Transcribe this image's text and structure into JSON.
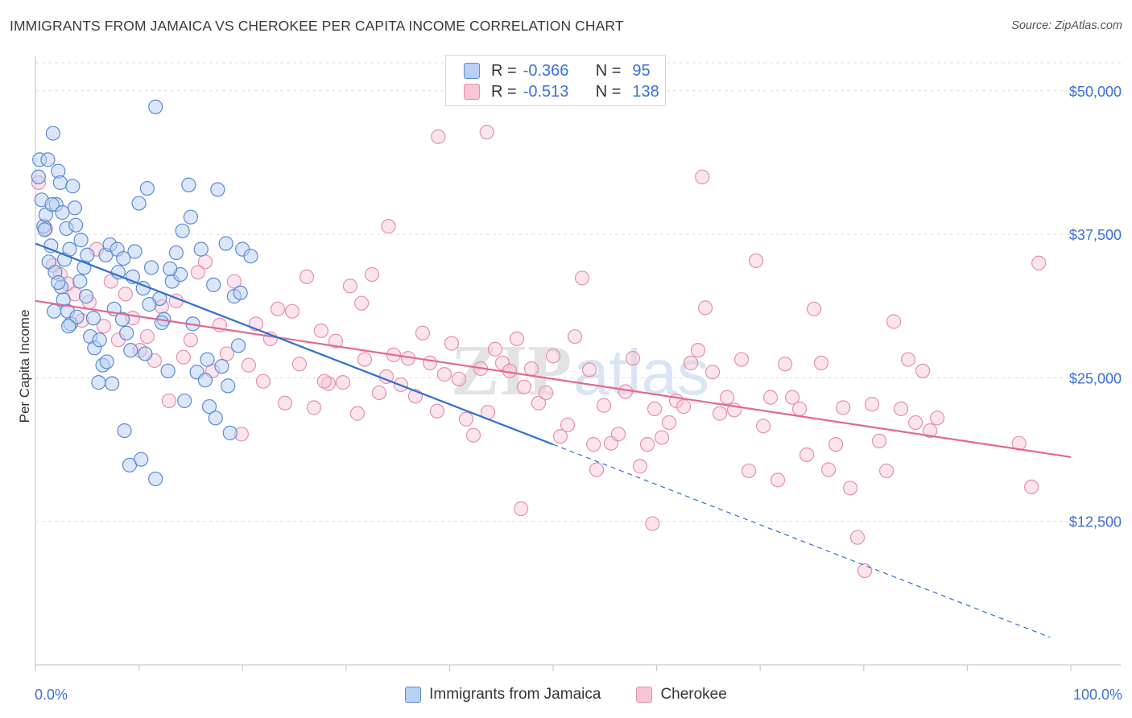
{
  "title": "IMMIGRANTS FROM JAMAICA VS CHEROKEE PER CAPITA INCOME CORRELATION CHART",
  "source": "Source: ZipAtlas.com",
  "watermark": {
    "zip": "ZIP",
    "atlas": "atlas"
  },
  "legend": {
    "r_label": "R =",
    "n_label": "N =",
    "rows": [
      {
        "r": "-0.366",
        "n": "95"
      },
      {
        "r": "-0.513",
        "n": "138"
      }
    ]
  },
  "colors": {
    "jamaica_fill": "#b8d0f4",
    "jamaica_stroke": "#5a8ad6",
    "jamaica_line": "#2f6fd0",
    "cherokee_fill": "#f8c4d6",
    "cherokee_stroke": "#e590ae",
    "cherokee_line": "#e2688f",
    "tick_label": "#3b6fd8",
    "grid": "#dddddd"
  },
  "chart_data": {
    "type": "scatter",
    "xlabel": "",
    "ylabel": "Per Capita Income",
    "xlim": [
      0,
      100
    ],
    "ylim": [
      0,
      53000
    ],
    "x_tick_labels": [
      "0.0%",
      "100.0%"
    ],
    "y_ticks": [
      12500,
      25000,
      37500,
      50000
    ],
    "y_tick_labels": [
      "$12,500",
      "$25,000",
      "$37,500",
      "$50,000"
    ],
    "grid": true,
    "legend_position": "top-center",
    "series": [
      {
        "name": "Immigrants from Jamaica",
        "r": -0.366,
        "n": 95,
        "trend": {
          "x0": 0,
          "y0": 36700,
          "x1": 50,
          "y1": 19200,
          "dashed_to_x": 98
        },
        "points": [
          [
            0.3,
            42500
          ],
          [
            0.4,
            44000
          ],
          [
            0.6,
            40500
          ],
          [
            0.8,
            38200
          ],
          [
            1.0,
            39200
          ],
          [
            1.2,
            44000
          ],
          [
            1.5,
            36500
          ],
          [
            1.7,
            46300
          ],
          [
            2.0,
            40100
          ],
          [
            2.2,
            43000
          ],
          [
            2.4,
            42000
          ],
          [
            2.8,
            35300
          ],
          [
            3.0,
            38000
          ],
          [
            3.3,
            36200
          ],
          [
            3.6,
            41700
          ],
          [
            3.8,
            39800
          ],
          [
            0.9,
            37900
          ],
          [
            1.3,
            35100
          ],
          [
            1.6,
            40100
          ],
          [
            1.9,
            34200
          ],
          [
            2.5,
            32900
          ],
          [
            2.7,
            31800
          ],
          [
            3.1,
            30800
          ],
          [
            3.4,
            29700
          ],
          [
            4.0,
            30300
          ],
          [
            4.4,
            37000
          ],
          [
            4.7,
            34600
          ],
          [
            5.0,
            35700
          ],
          [
            5.3,
            28600
          ],
          [
            5.7,
            27600
          ],
          [
            6.1,
            24600
          ],
          [
            6.5,
            26100
          ],
          [
            6.8,
            35700
          ],
          [
            7.2,
            36600
          ],
          [
            7.6,
            31000
          ],
          [
            8.0,
            34200
          ],
          [
            8.4,
            30100
          ],
          [
            8.8,
            28900
          ],
          [
            9.2,
            27400
          ],
          [
            9.6,
            36000
          ],
          [
            10.0,
            40200
          ],
          [
            10.4,
            32800
          ],
          [
            10.8,
            41500
          ],
          [
            11.2,
            34600
          ],
          [
            11.6,
            48600
          ],
          [
            12.0,
            31900
          ],
          [
            12.4,
            30100
          ],
          [
            12.8,
            25600
          ],
          [
            13.2,
            33400
          ],
          [
            13.6,
            35900
          ],
          [
            14.0,
            34000
          ],
          [
            14.4,
            23000
          ],
          [
            14.8,
            41800
          ],
          [
            15.2,
            29700
          ],
          [
            15.6,
            25500
          ],
          [
            16.0,
            36200
          ],
          [
            16.4,
            24800
          ],
          [
            16.8,
            22500
          ],
          [
            17.2,
            33100
          ],
          [
            17.6,
            41400
          ],
          [
            18.0,
            26000
          ],
          [
            18.4,
            36700
          ],
          [
            18.8,
            20200
          ],
          [
            19.2,
            32100
          ],
          [
            19.6,
            27800
          ],
          [
            20.0,
            36200
          ],
          [
            8.6,
            20400
          ],
          [
            9.1,
            17400
          ],
          [
            10.2,
            17900
          ],
          [
            11.6,
            16200
          ],
          [
            1.8,
            30800
          ],
          [
            2.2,
            33300
          ],
          [
            2.6,
            39400
          ],
          [
            3.2,
            29500
          ],
          [
            3.9,
            38300
          ],
          [
            4.3,
            33400
          ],
          [
            4.9,
            32100
          ],
          [
            5.6,
            30200
          ],
          [
            6.2,
            28300
          ],
          [
            6.9,
            26400
          ],
          [
            7.4,
            24500
          ],
          [
            7.9,
            36200
          ],
          [
            8.5,
            35400
          ],
          [
            9.4,
            33800
          ],
          [
            10.6,
            27100
          ],
          [
            11.0,
            31400
          ],
          [
            12.2,
            29800
          ],
          [
            13.0,
            34500
          ],
          [
            14.2,
            37800
          ],
          [
            15.0,
            39000
          ],
          [
            16.6,
            26600
          ],
          [
            17.4,
            21500
          ],
          [
            18.6,
            24300
          ],
          [
            19.8,
            32400
          ],
          [
            20.8,
            35600
          ]
        ]
      },
      {
        "name": "Cherokee",
        "r": -0.513,
        "n": 138,
        "trend": {
          "x0": 0,
          "y0": 31700,
          "x1": 100,
          "y1": 18100
        },
        "points": [
          [
            0.3,
            42000
          ],
          [
            1.0,
            38000
          ],
          [
            1.7,
            34800
          ],
          [
            2.4,
            34000
          ],
          [
            3.1,
            33200
          ],
          [
            3.8,
            32300
          ],
          [
            4.5,
            30000
          ],
          [
            5.2,
            31600
          ],
          [
            5.9,
            36200
          ],
          [
            6.6,
            29500
          ],
          [
            7.3,
            33400
          ],
          [
            8.0,
            28300
          ],
          [
            8.7,
            32300
          ],
          [
            9.4,
            30200
          ],
          [
            10.1,
            27400
          ],
          [
            10.8,
            28600
          ],
          [
            11.5,
            26500
          ],
          [
            12.2,
            31200
          ],
          [
            12.9,
            23000
          ],
          [
            13.6,
            31700
          ],
          [
            14.3,
            26800
          ],
          [
            15.0,
            28300
          ],
          [
            15.7,
            34200
          ],
          [
            16.4,
            35100
          ],
          [
            17.1,
            25600
          ],
          [
            17.8,
            29600
          ],
          [
            18.5,
            27100
          ],
          [
            19.2,
            33400
          ],
          [
            19.9,
            20100
          ],
          [
            20.6,
            26100
          ],
          [
            21.3,
            29700
          ],
          [
            22.0,
            24700
          ],
          [
            22.7,
            28400
          ],
          [
            23.4,
            31000
          ],
          [
            24.1,
            22800
          ],
          [
            24.8,
            30800
          ],
          [
            25.5,
            26200
          ],
          [
            26.2,
            33800
          ],
          [
            26.9,
            22400
          ],
          [
            27.6,
            29100
          ],
          [
            28.3,
            24500
          ],
          [
            29.0,
            28200
          ],
          [
            29.7,
            24600
          ],
          [
            30.4,
            33000
          ],
          [
            31.1,
            21900
          ],
          [
            31.8,
            26600
          ],
          [
            32.5,
            34000
          ],
          [
            33.2,
            23700
          ],
          [
            33.9,
            25100
          ],
          [
            34.6,
            27000
          ],
          [
            35.3,
            24400
          ],
          [
            36.0,
            26700
          ],
          [
            36.7,
            23400
          ],
          [
            37.4,
            28900
          ],
          [
            38.1,
            26300
          ],
          [
            38.8,
            22100
          ],
          [
            39.5,
            25300
          ],
          [
            40.2,
            28000
          ],
          [
            40.9,
            24900
          ],
          [
            41.6,
            21400
          ],
          [
            42.3,
            20000
          ],
          [
            43.0,
            25800
          ],
          [
            43.7,
            22000
          ],
          [
            44.4,
            27500
          ],
          [
            45.1,
            26300
          ],
          [
            45.8,
            25600
          ],
          [
            46.5,
            28400
          ],
          [
            47.2,
            24200
          ],
          [
            47.9,
            25800
          ],
          [
            48.6,
            22800
          ],
          [
            49.3,
            23700
          ],
          [
            50.0,
            26900
          ],
          [
            50.7,
            19900
          ],
          [
            51.4,
            20900
          ],
          [
            52.1,
            28600
          ],
          [
            52.8,
            33700
          ],
          [
            53.5,
            25700
          ],
          [
            54.2,
            17000
          ],
          [
            54.9,
            22600
          ],
          [
            55.6,
            19300
          ],
          [
            56.3,
            20100
          ],
          [
            57.0,
            23800
          ],
          [
            57.7,
            26700
          ],
          [
            58.4,
            17300
          ],
          [
            59.1,
            19200
          ],
          [
            59.8,
            22300
          ],
          [
            60.5,
            19800
          ],
          [
            61.2,
            21100
          ],
          [
            61.9,
            23000
          ],
          [
            62.6,
            22500
          ],
          [
            63.3,
            26300
          ],
          [
            64.0,
            27400
          ],
          [
            64.7,
            31100
          ],
          [
            65.4,
            25500
          ],
          [
            66.1,
            21900
          ],
          [
            66.8,
            23300
          ],
          [
            67.5,
            22200
          ],
          [
            68.2,
            26600
          ],
          [
            68.9,
            16900
          ],
          [
            69.6,
            35200
          ],
          [
            70.3,
            20800
          ],
          [
            71.0,
            23300
          ],
          [
            71.7,
            16100
          ],
          [
            72.4,
            26200
          ],
          [
            73.1,
            23300
          ],
          [
            73.8,
            22300
          ],
          [
            74.5,
            18300
          ],
          [
            75.2,
            31000
          ],
          [
            75.9,
            26300
          ],
          [
            76.6,
            17000
          ],
          [
            77.3,
            19200
          ],
          [
            78.0,
            22400
          ],
          [
            78.7,
            15400
          ],
          [
            79.4,
            11100
          ],
          [
            80.1,
            8200
          ],
          [
            80.8,
            22700
          ],
          [
            81.5,
            19500
          ],
          [
            82.2,
            16900
          ],
          [
            82.9,
            29900
          ],
          [
            83.6,
            22300
          ],
          [
            84.3,
            26600
          ],
          [
            85.0,
            21100
          ],
          [
            85.7,
            25600
          ],
          [
            86.4,
            20400
          ],
          [
            87.1,
            21500
          ],
          [
            27.9,
            24700
          ],
          [
            31.5,
            31500
          ],
          [
            34.1,
            38200
          ],
          [
            38.9,
            46000
          ],
          [
            43.6,
            46400
          ],
          [
            46.9,
            13600
          ],
          [
            53.9,
            19200
          ],
          [
            59.6,
            12300
          ],
          [
            64.4,
            42500
          ],
          [
            96.9,
            35000
          ],
          [
            96.2,
            15500
          ],
          [
            95.0,
            19300
          ]
        ]
      }
    ]
  }
}
